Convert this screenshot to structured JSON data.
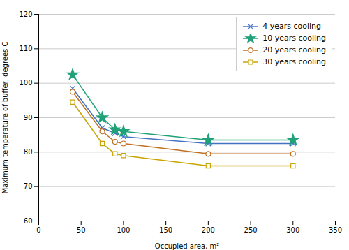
{
  "chart_data": {
    "type": "line",
    "xlabel": "Occupied area, m²",
    "ylabel": "Maximum temperature of buffer, degrees C",
    "x": [
      40,
      75,
      90,
      100,
      200,
      300
    ],
    "series": [
      {
        "name": "4 years cooling",
        "color": "#4472c4",
        "marker": "x",
        "values": [
          98.5,
          87.0,
          85.5,
          84.5,
          82.5,
          82.5
        ]
      },
      {
        "name": "10 years cooling",
        "color": "#21a179",
        "marker": "star",
        "values": [
          102.5,
          90.0,
          86.5,
          86.0,
          83.5,
          83.5
        ]
      },
      {
        "name": "20 years cooling",
        "color": "#c07020",
        "marker": "circle",
        "values": [
          97.5,
          86.0,
          83.0,
          82.5,
          79.5,
          79.5
        ]
      },
      {
        "name": "30 years cooling",
        "color": "#c8a400",
        "marker": "square",
        "values": [
          94.5,
          82.5,
          79.5,
          79.0,
          76.0,
          76.0
        ]
      }
    ],
    "xlim": [
      0,
      350
    ],
    "ylim": [
      60,
      120
    ],
    "xticks": [
      0,
      50,
      100,
      150,
      200,
      250,
      300,
      350
    ],
    "yticks": [
      60,
      70,
      80,
      90,
      100,
      110,
      120
    ],
    "grid": "y",
    "legend": "upper right"
  }
}
